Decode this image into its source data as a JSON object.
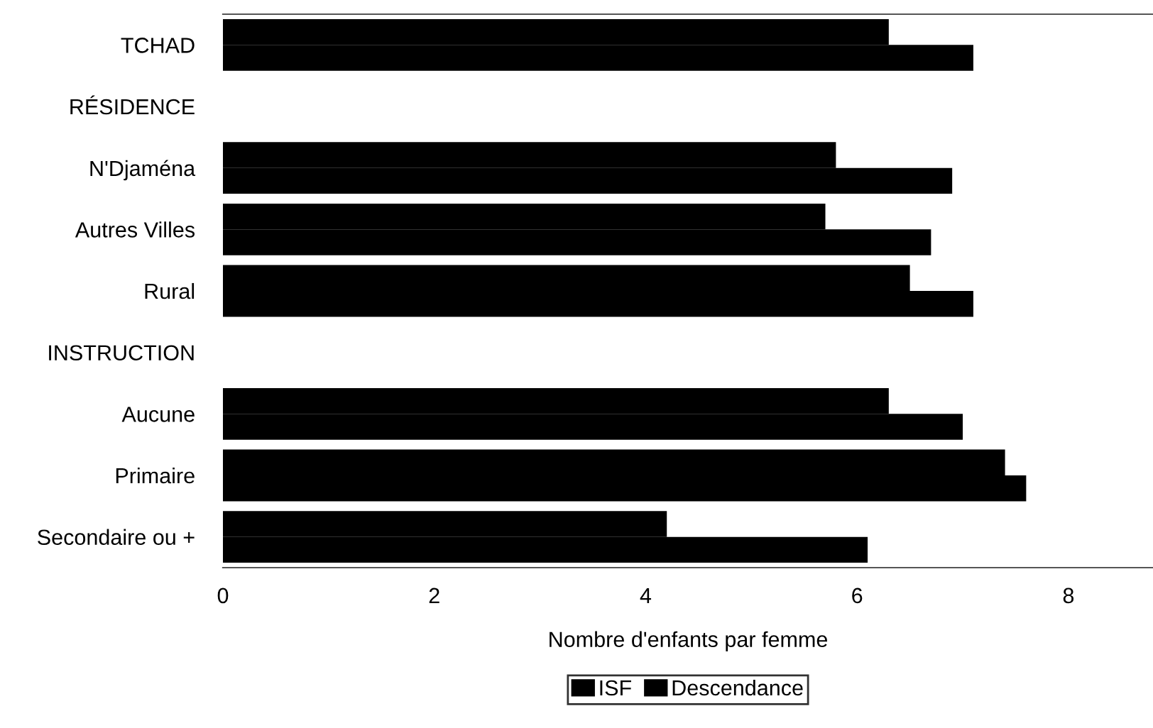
{
  "chart_data": {
    "type": "bar",
    "orientation": "horizontal",
    "xlabel": "Nombre d'enfants par femme",
    "categories": [
      "TCHAD",
      "RÉSIDENCE",
      "N'Djaména",
      "Autres Villes",
      "Rural",
      "INSTRUCTION",
      "Aucune",
      "Primaire",
      "Secondaire ou +"
    ],
    "series": [
      {
        "name": "ISF",
        "color": "#000000",
        "values": [
          6.3,
          null,
          5.8,
          5.7,
          6.5,
          null,
          6.3,
          7.4,
          4.2
        ]
      },
      {
        "name": "Descendance",
        "color": "#000000",
        "values": [
          7.1,
          null,
          6.9,
          6.7,
          7.1,
          null,
          7.0,
          7.6,
          6.1
        ]
      }
    ],
    "xlim": [
      0,
      8.8
    ],
    "xticks": [
      0,
      2,
      4,
      6,
      8
    ],
    "grid": false,
    "legend": "bottom"
  }
}
